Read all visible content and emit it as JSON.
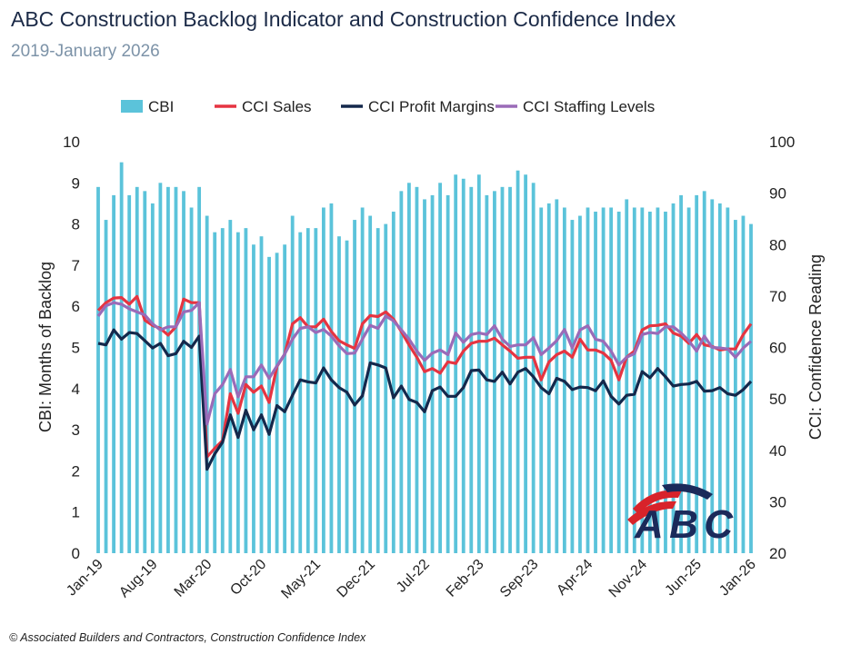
{
  "title": "ABC Construction Backlog Indicator and Construction Confidence Index",
  "subtitle": "2019-January 2026",
  "footer": "© Associated Builders and Contractors, Construction Confidence Index",
  "logo": {
    "text": "ABC",
    "colors": {
      "navy": "#1b2a5a",
      "red": "#d8232a"
    }
  },
  "chart_data": {
    "type": "bar+line",
    "title": "ABC Construction Backlog Indicator and Construction Confidence Index",
    "subtitle": "2019-January 2026",
    "ylabel": "CBI: Months of Backlog",
    "y2label": "CCI: Confidence Reading",
    "ylim": [
      0,
      10
    ],
    "y2lim": [
      20,
      100
    ],
    "yticks": [
      0,
      1,
      2,
      3,
      4,
      5,
      6,
      7,
      8,
      9,
      10
    ],
    "y2ticks": [
      20,
      30,
      40,
      50,
      60,
      70,
      80,
      90,
      100
    ],
    "grid": false,
    "legend": "top",
    "x_tick_labels": [
      "Jan-19",
      "Aug-19",
      "Mar-20",
      "Oct-20",
      "May-21",
      "Dec-21",
      "Jul-22",
      "Feb-23",
      "Sep-23",
      "Apr-24",
      "Nov-24",
      "Jun-25",
      "Jan-26"
    ],
    "categories": [
      "Jan-19",
      "Feb-19",
      "Mar-19",
      "Apr-19",
      "May-19",
      "Jun-19",
      "Jul-19",
      "Aug-19",
      "Sep-19",
      "Oct-19",
      "Nov-19",
      "Dec-19",
      "Jan-20",
      "Feb-20",
      "Mar-20",
      "Apr-20",
      "May-20",
      "Jun-20",
      "Jul-20",
      "Aug-20",
      "Sep-20",
      "Oct-20",
      "Nov-20",
      "Dec-20",
      "Jan-21",
      "Feb-21",
      "Mar-21",
      "Apr-21",
      "May-21",
      "Jun-21",
      "Jul-21",
      "Aug-21",
      "Sep-21",
      "Oct-21",
      "Nov-21",
      "Dec-21",
      "Jan-22",
      "Feb-22",
      "Mar-22",
      "Apr-22",
      "May-22",
      "Jun-22",
      "Jul-22",
      "Aug-22",
      "Sep-22",
      "Oct-22",
      "Nov-22",
      "Dec-22",
      "Jan-23",
      "Feb-23",
      "Mar-23",
      "Apr-23",
      "May-23",
      "Jun-23",
      "Jul-23",
      "Aug-23",
      "Sep-23",
      "Oct-23",
      "Nov-23",
      "Dec-23",
      "Jan-24",
      "Feb-24",
      "Mar-24",
      "Apr-24",
      "May-24",
      "Jun-24",
      "Jul-24",
      "Aug-24",
      "Sep-24",
      "Oct-24",
      "Nov-24",
      "Dec-24",
      "Jan-25",
      "Feb-25",
      "Mar-25",
      "Apr-25",
      "May-25",
      "Jun-25",
      "Jul-25",
      "Aug-25",
      "Sep-25",
      "Oct-25",
      "Nov-25",
      "Dec-25",
      "Jan-26"
    ],
    "series": [
      {
        "name": "CBI",
        "type": "bar",
        "axis": "left",
        "color": "#5bc3da",
        "values": [
          8.9,
          8.1,
          8.7,
          9.5,
          8.7,
          8.9,
          8.8,
          8.5,
          9.0,
          8.9,
          8.9,
          8.8,
          8.4,
          8.9,
          8.2,
          7.8,
          7.9,
          8.1,
          7.8,
          7.9,
          7.5,
          7.7,
          7.2,
          7.3,
          7.5,
          8.2,
          7.8,
          7.9,
          7.9,
          8.4,
          8.5,
          7.7,
          7.6,
          8.1,
          8.4,
          8.2,
          7.9,
          8.0,
          8.3,
          8.8,
          9.0,
          8.9,
          8.6,
          8.7,
          9.0,
          8.7,
          9.2,
          9.1,
          8.9,
          9.2,
          8.7,
          8.8,
          8.9,
          8.9,
          9.3,
          9.2,
          9.0,
          8.4,
          8.5,
          8.6,
          8.4,
          8.1,
          8.2,
          8.4,
          8.3,
          8.4,
          8.4,
          8.3,
          8.6,
          8.4,
          8.4,
          8.3,
          8.4,
          8.3,
          8.5,
          8.7,
          8.4,
          8.7,
          8.8,
          8.6,
          8.5,
          8.4,
          8.1,
          8.2,
          8.0
        ]
      },
      {
        "name": "CCI Sales",
        "type": "line",
        "axis": "right",
        "color": "#e63441",
        "values": [
          67.2,
          68.7,
          69.6,
          69.7,
          68.4,
          69.9,
          65.3,
          64.3,
          63.7,
          62.4,
          64.0,
          69.4,
          68.7,
          68.7,
          38.7,
          40.4,
          41.9,
          51.0,
          47.2,
          52.8,
          51.3,
          52.5,
          49.3,
          56.3,
          58.7,
          64.6,
          65.8,
          64.0,
          64.0,
          65.5,
          63.1,
          61.3,
          60.5,
          59.8,
          64.6,
          66.2,
          66.0,
          66.9,
          65.5,
          63.1,
          60.5,
          58.1,
          55.3,
          55.9,
          55.0,
          57.2,
          56.9,
          59.3,
          60.8,
          61.2,
          61.2,
          61.8,
          60.5,
          59.3,
          57.9,
          58.1,
          58.1,
          53.7,
          57.2,
          58.6,
          59.3,
          58.1,
          61.6,
          59.5,
          59.5,
          58.9,
          57.5,
          53.7,
          58.1,
          59.3,
          63.4,
          64.2,
          64.3,
          64.6,
          62.8,
          62.2,
          60.8,
          62.5,
          60.5,
          60.2,
          59.5,
          59.7,
          59.7,
          62.5,
          64.6
        ]
      },
      {
        "name": "CCI Profit Margins",
        "type": "line",
        "axis": "right",
        "color": "#14284b",
        "values": [
          60.8,
          60.5,
          63.4,
          61.6,
          62.9,
          62.7,
          61.3,
          59.9,
          60.8,
          58.4,
          58.8,
          61.2,
          60.0,
          62.2,
          36.3,
          39.3,
          41.6,
          46.9,
          42.5,
          47.8,
          44.0,
          46.9,
          43.1,
          48.7,
          47.5,
          50.7,
          53.7,
          53.3,
          53.1,
          56.0,
          53.7,
          52.2,
          51.3,
          48.8,
          50.6,
          57.0,
          56.6,
          56.0,
          50.2,
          52.5,
          49.9,
          49.3,
          47.5,
          51.6,
          52.3,
          50.5,
          50.5,
          52.2,
          55.5,
          55.6,
          53.7,
          53.4,
          55.2,
          52.9,
          55.2,
          55.9,
          54.3,
          52.2,
          51.0,
          54.0,
          53.4,
          51.8,
          52.3,
          52.2,
          51.6,
          53.5,
          50.5,
          49.0,
          50.7,
          50.9,
          55.3,
          54.1,
          55.9,
          54.3,
          52.5,
          52.8,
          52.9,
          53.4,
          51.5,
          51.6,
          52.2,
          51.0,
          50.7,
          51.8,
          53.4
        ]
      },
      {
        "name": "CCI Staffing Levels",
        "type": "line",
        "axis": "right",
        "color": "#9a6bb8",
        "values": [
          66.1,
          68.1,
          68.7,
          68.4,
          67.5,
          66.9,
          66.3,
          64.6,
          63.4,
          64.0,
          64.0,
          66.9,
          67.2,
          68.7,
          45.1,
          51.0,
          52.8,
          55.7,
          50.4,
          54.3,
          54.3,
          56.6,
          54.0,
          56.4,
          58.7,
          61.6,
          63.7,
          64.0,
          62.9,
          63.5,
          62.2,
          60.3,
          58.8,
          58.9,
          61.6,
          64.3,
          63.7,
          66.1,
          65.2,
          63.4,
          61.6,
          59.3,
          57.5,
          58.9,
          59.5,
          58.6,
          62.8,
          61.0,
          62.5,
          62.8,
          62.5,
          64.2,
          61.6,
          60.2,
          60.5,
          60.5,
          61.9,
          58.6,
          59.9,
          61.3,
          63.5,
          59.9,
          63.4,
          64.2,
          61.6,
          61.2,
          59.3,
          56.6,
          58.1,
          58.8,
          62.5,
          62.9,
          62.7,
          64.0,
          64.0,
          62.8,
          61.3,
          59.3,
          62.2,
          60.0,
          59.9,
          59.7,
          58.1,
          59.9,
          61.2
        ]
      }
    ]
  }
}
